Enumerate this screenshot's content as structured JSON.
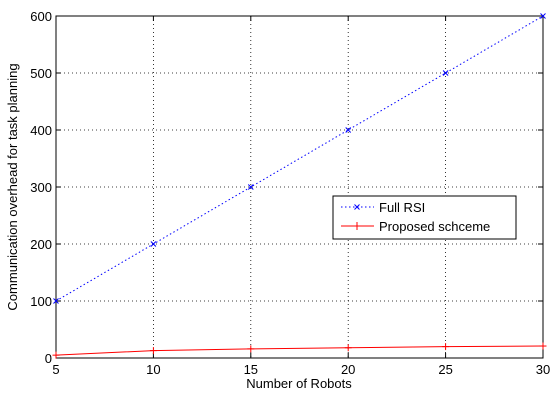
{
  "chart_data": {
    "type": "line",
    "title": "",
    "xlabel": "Number of Robots",
    "ylabel": "Communication overhead for task planning",
    "xlim": [
      5,
      30
    ],
    "ylim": [
      0,
      600
    ],
    "xticks": [
      5,
      10,
      15,
      20,
      25,
      30
    ],
    "yticks": [
      0,
      100,
      200,
      300,
      400,
      500,
      600
    ],
    "grid": true,
    "legend_position": "center-right",
    "x": [
      5,
      10,
      15,
      20,
      25,
      30
    ],
    "series": [
      {
        "name": "Full RSI",
        "values": [
          100,
          200,
          300,
          400,
          500,
          600
        ],
        "color": "#0000ff",
        "line": "dotted",
        "marker": "x"
      },
      {
        "name": "Proposed schceme",
        "values": [
          5,
          13,
          16,
          18,
          20,
          21
        ],
        "color": "#ff0000",
        "line": "solid",
        "marker": "+"
      }
    ]
  }
}
